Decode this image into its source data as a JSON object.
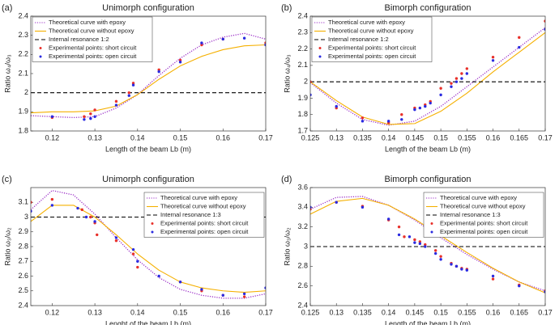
{
  "chart_data": [
    {
      "type": "line",
      "label": "(a)",
      "title": "Unimorph configuration",
      "xlabel": "Length of the beam Lb (m)",
      "ylabel": "Ratio ω₄/ω₃",
      "xlim": [
        0.115,
        0.17
      ],
      "ylim": [
        1.8,
        2.4
      ],
      "xticks": [
        0.12,
        0.13,
        0.14,
        0.15,
        0.16,
        0.17
      ],
      "yticks": [
        1.8,
        1.9,
        2,
        2.1,
        2.2,
        2.3,
        2.4
      ],
      "legend": "upper left",
      "series": [
        {
          "name": "Theoretical curve with epoxy",
          "color": "#9b2fc7",
          "style": "dotted",
          "x": [
            0.115,
            0.12,
            0.125,
            0.13,
            0.135,
            0.14,
            0.145,
            0.15,
            0.155,
            0.16,
            0.165,
            0.17
          ],
          "values": [
            1.88,
            1.875,
            1.87,
            1.875,
            1.92,
            1.99,
            2.09,
            2.18,
            2.25,
            2.29,
            2.31,
            2.28
          ]
        },
        {
          "name": "Theoretical curve without epoxy",
          "color": "#f5b000",
          "style": "solid",
          "x": [
            0.115,
            0.12,
            0.125,
            0.13,
            0.135,
            0.14,
            0.145,
            0.15,
            0.155,
            0.16,
            0.165,
            0.17
          ],
          "values": [
            1.895,
            1.9,
            1.9,
            1.905,
            1.93,
            1.99,
            2.07,
            2.14,
            2.19,
            2.225,
            2.245,
            2.25
          ]
        },
        {
          "name": "Internal resonance 1:2",
          "color": "#000000",
          "style": "dashed",
          "x": [
            0.115,
            0.17
          ],
          "values": [
            2,
            2
          ]
        },
        {
          "name": "Experimental points: short circuit",
          "color": "#e8302a",
          "style": "points",
          "x": [
            0.12,
            0.1275,
            0.129,
            0.13,
            0.135,
            0.138,
            0.139,
            0.145,
            0.15,
            0.155,
            0.16,
            0.17
          ],
          "values": [
            1.87,
            1.875,
            1.89,
            1.91,
            1.955,
            2.0,
            2.05,
            2.12,
            2.17,
            2.25,
            2.28,
            2.26
          ]
        },
        {
          "name": "Experimental points: open circuit",
          "color": "#2a2ae0",
          "style": "points",
          "x": [
            0.12,
            0.1275,
            0.129,
            0.13,
            0.135,
            0.138,
            0.139,
            0.145,
            0.15,
            0.155,
            0.16,
            0.165,
            0.17
          ],
          "values": [
            1.875,
            1.86,
            1.865,
            1.875,
            1.935,
            1.985,
            2.04,
            2.11,
            2.16,
            2.26,
            2.28,
            2.285,
            2.25
          ]
        }
      ]
    },
    {
      "type": "line",
      "label": "(b)",
      "title": "Bimorph configuration",
      "xlabel": "Length of the beam Lb (m)",
      "ylabel": "Ratio ω₄/ω₃",
      "xlim": [
        0.125,
        0.17
      ],
      "ylim": [
        1.7,
        2.4
      ],
      "xticks": [
        0.125,
        0.13,
        0.135,
        0.14,
        0.145,
        0.15,
        0.155,
        0.16,
        0.165,
        0.17
      ],
      "yticks": [
        1.7,
        1.8,
        1.9,
        2,
        2.1,
        2.2,
        2.3,
        2.4
      ],
      "legend": "upper left",
      "series": [
        {
          "name": "Theoretical curve with epoxy",
          "color": "#9b2fc7",
          "style": "dotted",
          "x": [
            0.125,
            0.13,
            0.135,
            0.14,
            0.145,
            0.15,
            0.155,
            0.16,
            0.165,
            0.17
          ],
          "values": [
            1.995,
            1.87,
            1.77,
            1.735,
            1.76,
            1.85,
            1.97,
            2.09,
            2.21,
            2.33
          ]
        },
        {
          "name": "Theoretical curve without epoxy",
          "color": "#f5b000",
          "style": "solid",
          "x": [
            0.125,
            0.13,
            0.135,
            0.14,
            0.145,
            0.15,
            0.155,
            0.16,
            0.165,
            0.17
          ],
          "values": [
            2.0,
            1.885,
            1.785,
            1.74,
            1.745,
            1.82,
            1.93,
            2.06,
            2.18,
            2.3
          ]
        },
        {
          "name": "Internal resonance 1:2",
          "color": "#000000",
          "style": "dashed",
          "x": [
            0.125,
            0.17
          ],
          "values": [
            2,
            2
          ]
        },
        {
          "name": "Experimental points: short circuit",
          "color": "#e8302a",
          "style": "points",
          "x": [
            0.125,
            0.13,
            0.135,
            0.14,
            0.1425,
            0.145,
            0.147,
            0.148,
            0.15,
            0.152,
            0.153,
            0.154,
            0.155,
            0.16,
            0.165,
            0.17
          ],
          "values": [
            2.0,
            1.84,
            1.78,
            1.75,
            1.8,
            1.84,
            1.86,
            1.88,
            1.96,
            1.99,
            2.02,
            2.05,
            2.08,
            2.15,
            2.27,
            2.37
          ]
        },
        {
          "name": "Experimental points: open circuit",
          "color": "#2a2ae0",
          "style": "points",
          "x": [
            0.125,
            0.13,
            0.135,
            0.14,
            0.1425,
            0.145,
            0.146,
            0.147,
            0.148,
            0.15,
            0.152,
            0.153,
            0.154,
            0.155,
            0.16,
            0.165,
            0.17
          ],
          "values": [
            1.92,
            1.85,
            1.76,
            1.76,
            1.77,
            1.83,
            1.84,
            1.85,
            1.87,
            1.92,
            1.97,
            2.0,
            2.02,
            2.05,
            2.13,
            2.21,
            2.32
          ]
        }
      ]
    },
    {
      "type": "line",
      "label": "(c)",
      "title": "Unimorph configuration",
      "xlabel": "Lenght of the beam Lb (m)",
      "ylabel": "Ratio ω₃/ω₂",
      "xlim": [
        0.115,
        0.17
      ],
      "ylim": [
        2.4,
        3.2
      ],
      "xticks": [
        0.12,
        0.13,
        0.14,
        0.15,
        0.16,
        0.17
      ],
      "yticks": [
        2.4,
        2.5,
        2.6,
        2.7,
        2.8,
        2.9,
        3,
        3.1
      ],
      "legend": "center right",
      "series": [
        {
          "name": "Theoretical curve with epoxy",
          "color": "#9b2fc7",
          "style": "dotted",
          "x": [
            0.115,
            0.12,
            0.125,
            0.13,
            0.135,
            0.14,
            0.145,
            0.15,
            0.155,
            0.16,
            0.165,
            0.17
          ],
          "values": [
            3.05,
            3.18,
            3.15,
            3.02,
            2.86,
            2.71,
            2.59,
            2.51,
            2.47,
            2.45,
            2.45,
            2.48
          ]
        },
        {
          "name": "Theoretical curve without epoxy",
          "color": "#f5b000",
          "style": "solid",
          "x": [
            0.115,
            0.12,
            0.125,
            0.13,
            0.135,
            0.14,
            0.145,
            0.15,
            0.155,
            0.16,
            0.165,
            0.17
          ],
          "values": [
            2.97,
            3.08,
            3.08,
            3.0,
            2.88,
            2.75,
            2.64,
            2.56,
            2.52,
            2.5,
            2.49,
            2.5
          ]
        },
        {
          "name": "Internal resonance 1:3",
          "color": "#000000",
          "style": "dashed",
          "x": [
            0.115,
            0.17
          ],
          "values": [
            3,
            3
          ]
        },
        {
          "name": "Experimental points: short circuit",
          "color": "#e8302a",
          "style": "points",
          "x": [
            0.115,
            0.12,
            0.127,
            0.129,
            0.13,
            0.1305,
            0.135,
            0.139,
            0.14,
            0.15,
            0.155,
            0.16,
            0.165
          ],
          "values": [
            3.1,
            3.12,
            3.05,
            3.0,
            2.96,
            2.88,
            2.84,
            2.75,
            2.66,
            2.56,
            2.5,
            2.47,
            2.46
          ]
        },
        {
          "name": "Experimental points: open circuit",
          "color": "#2a2ae0",
          "style": "points",
          "x": [
            0.115,
            0.12,
            0.126,
            0.128,
            0.13,
            0.135,
            0.139,
            0.14,
            0.145,
            0.15,
            0.155,
            0.16,
            0.165,
            0.17
          ],
          "values": [
            3.04,
            3.08,
            3.06,
            3.0,
            2.97,
            2.86,
            2.78,
            2.7,
            2.6,
            2.56,
            2.51,
            2.47,
            2.48,
            2.52
          ]
        }
      ]
    },
    {
      "type": "line",
      "label": "(d)",
      "title": "Bimorph configuration",
      "xlabel": "Length of the beam Lb (m)",
      "ylabel": "Ratio ω₃/ω₂",
      "xlim": [
        0.125,
        0.17
      ],
      "ylim": [
        2.4,
        3.6
      ],
      "xticks": [
        0.125,
        0.13,
        0.135,
        0.14,
        0.145,
        0.15,
        0.155,
        0.16,
        0.165,
        0.17
      ],
      "yticks": [
        2.4,
        2.6,
        2.8,
        3,
        3.2,
        3.4,
        3.6
      ],
      "legend": "center right",
      "series": [
        {
          "name": "Theoretical curve with epoxy",
          "color": "#9b2fc7",
          "style": "dotted",
          "x": [
            0.125,
            0.13,
            0.135,
            0.14,
            0.145,
            0.15,
            0.155,
            0.16,
            0.165,
            0.17
          ],
          "values": [
            3.38,
            3.5,
            3.51,
            3.42,
            3.27,
            3.09,
            2.92,
            2.77,
            2.64,
            2.55
          ]
        },
        {
          "name": "Theoretical curve without epoxy",
          "color": "#f5b000",
          "style": "solid",
          "x": [
            0.125,
            0.13,
            0.135,
            0.14,
            0.145,
            0.15,
            0.155,
            0.16,
            0.165,
            0.17
          ],
          "values": [
            3.33,
            3.46,
            3.49,
            3.42,
            3.28,
            3.11,
            2.94,
            2.78,
            2.64,
            2.53
          ]
        },
        {
          "name": "Internal resonance 1:3",
          "color": "#000000",
          "style": "dashed",
          "x": [
            0.125,
            0.17
          ],
          "values": [
            3,
            3
          ]
        },
        {
          "name": "Experimental points: short circuit",
          "color": "#e8302a",
          "style": "points",
          "x": [
            0.125,
            0.13,
            0.135,
            0.14,
            0.142,
            0.143,
            0.145,
            0.146,
            0.147,
            0.149,
            0.15,
            0.152,
            0.153,
            0.154,
            0.155,
            0.16,
            0.165,
            0.17
          ],
          "values": [
            3.38,
            3.45,
            3.41,
            3.27,
            3.2,
            3.1,
            3.07,
            3.05,
            3.02,
            2.96,
            2.9,
            2.83,
            2.8,
            2.78,
            2.77,
            2.67,
            2.61,
            2.55
          ]
        },
        {
          "name": "Experimental points: open circuit",
          "color": "#2a2ae0",
          "style": "points",
          "x": [
            0.125,
            0.13,
            0.135,
            0.14,
            0.142,
            0.144,
            0.145,
            0.146,
            0.147,
            0.149,
            0.15,
            0.152,
            0.153,
            0.154,
            0.155,
            0.16,
            0.165,
            0.17
          ],
          "values": [
            3.4,
            3.45,
            3.4,
            3.28,
            3.12,
            3.1,
            3.04,
            3.03,
            3.0,
            2.93,
            2.87,
            2.82,
            2.8,
            2.77,
            2.76,
            2.7,
            2.6,
            2.54
          ]
        }
      ]
    }
  ]
}
